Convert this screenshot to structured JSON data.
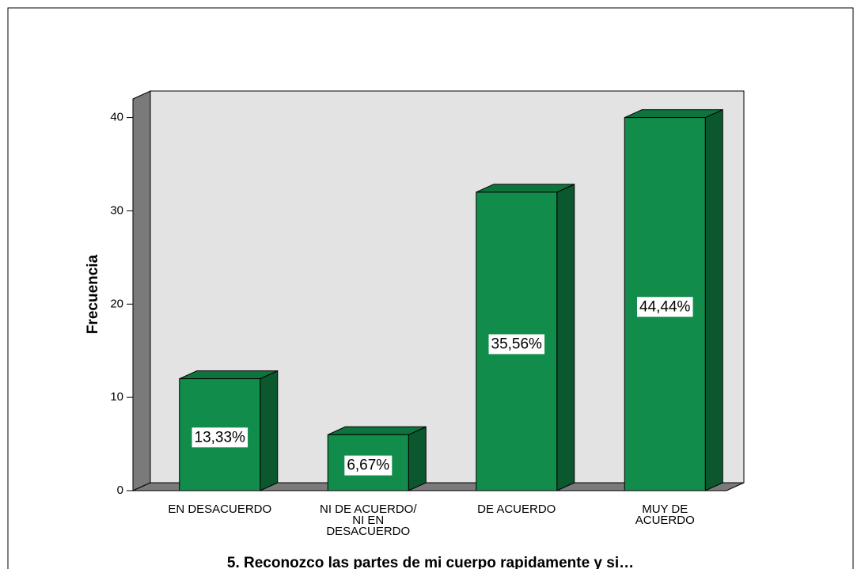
{
  "chart_data": {
    "type": "bar3d",
    "x_label": "5. Reconozco las partes de mi cuerpo rapidamente y si…",
    "y_label": "Frecuencia",
    "categories": [
      [
        "EN DESACUERDO"
      ],
      [
        "NI DE ACUERDO/",
        "NI EN",
        "DESACUERDO"
      ],
      [
        "DE ACUERDO"
      ],
      [
        "MUY DE",
        "ACUERDO"
      ]
    ],
    "values": [
      12,
      6,
      32,
      40
    ],
    "data_labels": [
      "13,33%",
      "6,67%",
      "35,56%",
      "44,44%"
    ],
    "color": "#128c4a",
    "ylim": [
      0,
      42
    ],
    "yticks": [
      0,
      10,
      20,
      30,
      40
    ]
  }
}
